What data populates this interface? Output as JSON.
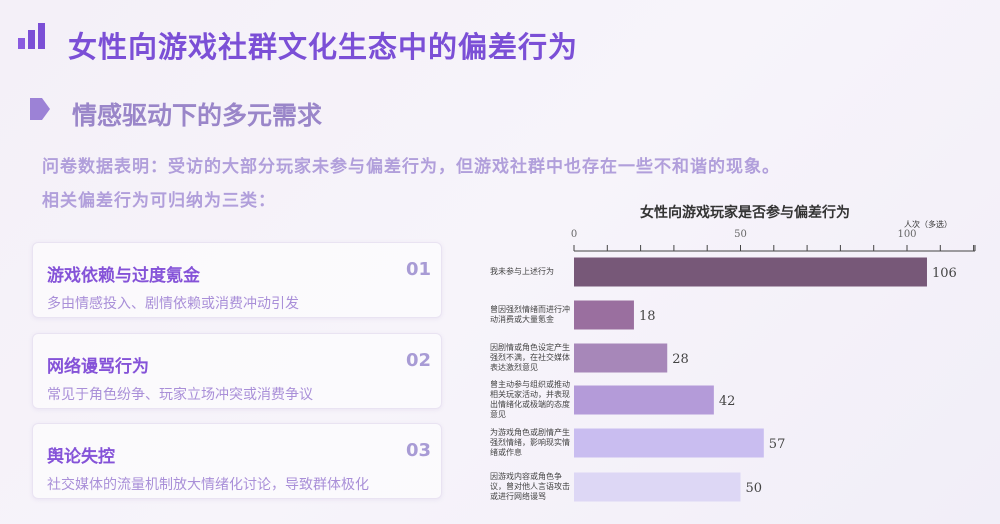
{
  "header": {
    "title": "女性向游戏社群文化生态中的偏差行为",
    "logo_icon": "bar-chart-icon"
  },
  "section": {
    "subtitle": "情感驱动下的多元需求",
    "bullet_icon": "tag-arrow-icon",
    "paragraph1": "问卷数据表明：受访的大部分玩家未参与偏差行为，但游戏社群中也存在一些不和谐的现象。",
    "paragraph2": "相关偏差行为可归纳为三类："
  },
  "cards": [
    {
      "title": "游戏依赖与过度氪金",
      "desc": "多由情感投入、剧情依赖或消费冲动引发",
      "num": "01"
    },
    {
      "title": "网络谩骂行为",
      "desc": "常见于角色纷争、玩家立场冲突或消费争议",
      "num": "02"
    },
    {
      "title": "舆论失控",
      "desc": "社交媒体的流量机制放大情绪化讨论，导致群体极化",
      "num": "03"
    }
  ],
  "chart_data": {
    "type": "bar",
    "orientation": "horizontal",
    "title": "女性向游戏玩家是否参与偏差行为",
    "xlabel": "人次（多选）",
    "xlim": [
      0,
      120
    ],
    "ticks": [
      "0",
      "50",
      "100"
    ],
    "grid": false,
    "categories": [
      "我未参与上述行为",
      "曾因强烈情绪而进行冲动消费或大量氪金",
      "因剧情或角色设定产生强烈不满，在社交媒体表达激烈意见",
      "曾主动参与组织或推动相关玩家活动，并表现出情绪化或极端的态度意见",
      "为游戏角色或剧情产生强烈情绪，影响现实情绪或作息",
      "因游戏内容或角色争议，曾对他人言语攻击或进行网络谩骂"
    ],
    "values": [
      106,
      18,
      28,
      42,
      57,
      50
    ],
    "colors": [
      "#775878",
      "#9a6f9f",
      "#a787b9",
      "#b49bd9",
      "#c9bdf0",
      "#ddd7f5"
    ]
  }
}
